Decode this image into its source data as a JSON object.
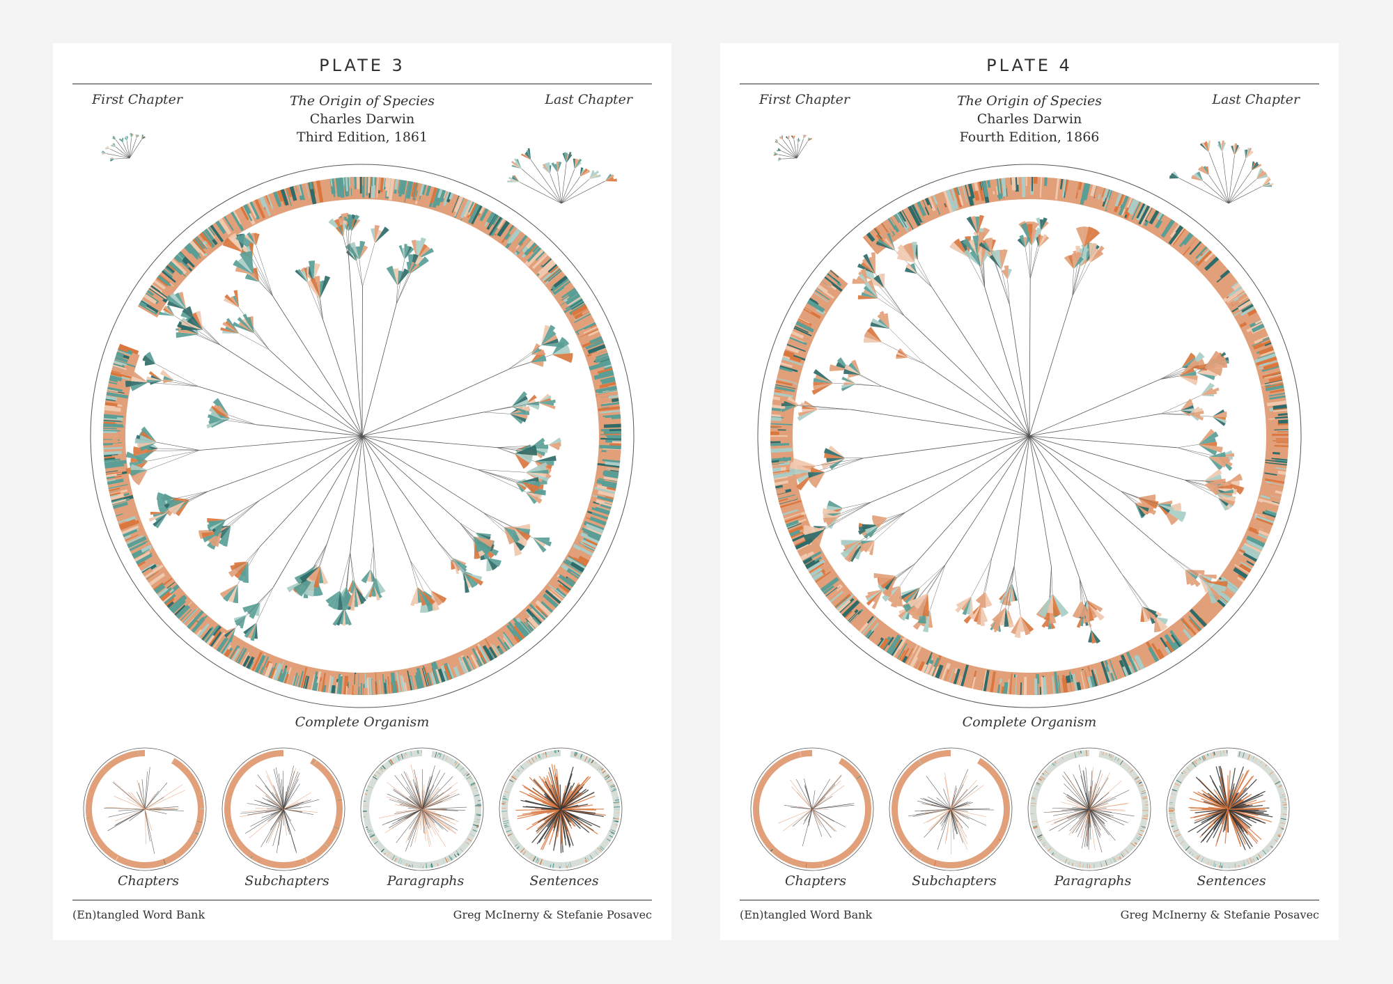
{
  "colors": {
    "teal": "#5a9e96",
    "teal_light": "#a9cdc6",
    "teal_dark": "#2f6b68",
    "orange": "#e2a07a",
    "orange_dark": "#d9773f",
    "orange_light": "#f0c8ae",
    "line": "#444444"
  },
  "plates": [
    {
      "id": "plate-3",
      "title": "PLATE 3",
      "first_label": "First Chapter",
      "last_label": "Last Chapter",
      "book_title": "The Origin of Species",
      "author": "Charles Darwin",
      "edition": "Third Edition, 1861",
      "organism_label": "Complete Organism",
      "small_labels": [
        "Chapters",
        "Subchapters",
        "Paragraphs",
        "Sentences"
      ],
      "footer_left": "(En)tangled Word Bank",
      "footer_right": "Greg McInerny & Stefanie Posavec",
      "palette_bias": "teal"
    },
    {
      "id": "plate-4",
      "title": "PLATE 4",
      "first_label": "First Chapter",
      "last_label": "Last Chapter",
      "book_title": "The Origin of Species",
      "author": "Charles Darwin",
      "edition": "Fourth Edition, 1866",
      "organism_label": "Complete Organism",
      "small_labels": [
        "Chapters",
        "Subchapters",
        "Paragraphs",
        "Sentences"
      ],
      "footer_left": "(En)tangled Word Bank",
      "footer_right": "Greg McInerny & Stefanie Posavec",
      "palette_bias": "orange"
    }
  ]
}
